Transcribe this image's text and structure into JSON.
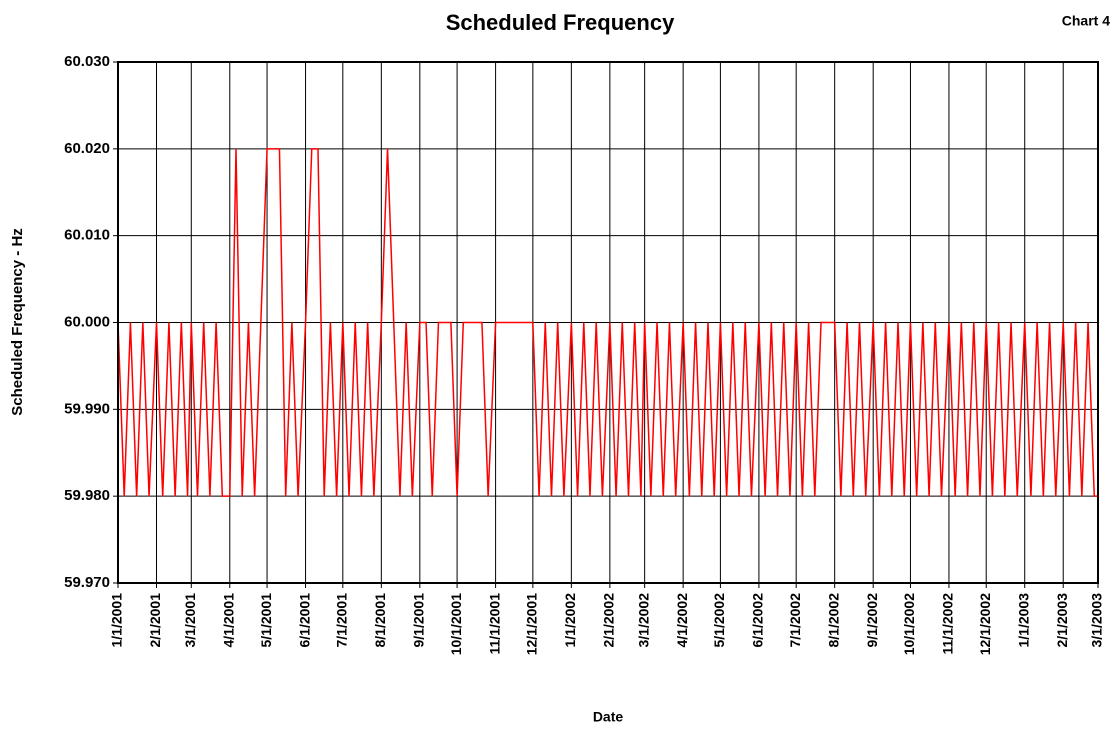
{
  "chart_data": {
    "type": "line",
    "title": "Scheduled Frequency",
    "annotation": "Chart 4",
    "xlabel": "Date",
    "ylabel": "Scheduled Frequency - Hz",
    "ylim": [
      59.97,
      60.03
    ],
    "yticks": [
      {
        "value": 59.97,
        "label": "59.970"
      },
      {
        "value": 59.98,
        "label": "59.980"
      },
      {
        "value": 59.99,
        "label": "59.990"
      },
      {
        "value": 60.0,
        "label": "60.000"
      },
      {
        "value": 60.01,
        "label": "60.010"
      },
      {
        "value": 60.02,
        "label": "60.020"
      },
      {
        "value": 60.03,
        "label": "60.030"
      }
    ],
    "xlim": [
      "1/1/2001",
      "3/1/2003"
    ],
    "xticks": [
      "1/1/2001",
      "2/1/2001",
      "3/1/2001",
      "4/1/2001",
      "5/1/2001",
      "6/1/2001",
      "7/1/2001",
      "8/1/2001",
      "9/1/2001",
      "10/1/2001",
      "11/1/2001",
      "12/1/2001",
      "1/1/2002",
      "2/1/2002",
      "3/1/2002",
      "4/1/2002",
      "5/1/2002",
      "6/1/2002",
      "7/1/2002",
      "8/1/2002",
      "9/1/2002",
      "10/1/2002",
      "11/1/2002",
      "12/1/2002",
      "1/1/2003",
      "2/1/2003",
      "3/1/2003"
    ],
    "grid": true,
    "x": [
      "1/1/2001",
      "1/6/2001",
      "1/11/2001",
      "1/16/2001",
      "1/21/2001",
      "1/26/2001",
      "2/1/2001",
      "2/6/2001",
      "2/11/2001",
      "2/16/2001",
      "2/21/2001",
      "2/26/2001",
      "3/1/2001",
      "3/6/2001",
      "3/11/2001",
      "3/16/2001",
      "3/21/2001",
      "3/26/2001",
      "4/1/2001",
      "4/6/2001",
      "4/11/2001",
      "4/16/2001",
      "4/21/2001",
      "4/26/2001",
      "5/1/2001",
      "5/6/2001",
      "5/11/2001",
      "5/16/2001",
      "5/21/2001",
      "5/26/2001",
      "6/1/2001",
      "6/6/2001",
      "6/11/2001",
      "6/16/2001",
      "6/21/2001",
      "6/26/2001",
      "7/1/2001",
      "7/6/2001",
      "7/11/2001",
      "7/16/2001",
      "7/21/2001",
      "7/26/2001",
      "8/1/2001",
      "8/6/2001",
      "8/11/2001",
      "8/16/2001",
      "8/21/2001",
      "8/26/2001",
      "9/1/2001",
      "9/6/2001",
      "9/11/2001",
      "9/16/2001",
      "9/21/2001",
      "9/26/2001",
      "10/1/2001",
      "10/6/2001",
      "10/11/2001",
      "10/16/2001",
      "10/21/2001",
      "10/26/2001",
      "11/1/2001",
      "11/6/2001",
      "11/11/2001",
      "11/16/2001",
      "11/21/2001",
      "11/26/2001",
      "12/1/2001",
      "12/6/2001",
      "12/11/2001",
      "12/16/2001",
      "12/21/2001",
      "12/26/2001",
      "1/1/2002",
      "1/6/2002",
      "1/11/2002",
      "1/16/2002",
      "1/21/2002",
      "1/26/2002",
      "2/1/2002",
      "2/6/2002",
      "2/11/2002",
      "2/16/2002",
      "2/21/2002",
      "2/26/2002",
      "3/1/2002",
      "3/6/2002",
      "3/11/2002",
      "3/16/2002",
      "3/21/2002",
      "3/26/2002",
      "4/1/2002",
      "4/6/2002",
      "4/11/2002",
      "4/16/2002",
      "4/21/2002",
      "4/26/2002",
      "5/1/2002",
      "5/6/2002",
      "5/11/2002",
      "5/16/2002",
      "5/21/2002",
      "5/26/2002",
      "6/1/2002",
      "6/6/2002",
      "6/11/2002",
      "6/16/2002",
      "6/21/2002",
      "6/26/2002",
      "7/1/2002",
      "7/6/2002",
      "7/11/2002",
      "7/16/2002",
      "7/21/2002",
      "7/26/2002",
      "8/1/2002",
      "8/6/2002",
      "8/11/2002",
      "8/16/2002",
      "8/21/2002",
      "8/26/2002",
      "9/1/2002",
      "9/6/2002",
      "9/11/2002",
      "9/16/2002",
      "9/21/2002",
      "9/26/2002",
      "10/1/2002",
      "10/6/2002",
      "10/11/2002",
      "10/16/2002",
      "10/21/2002",
      "10/26/2002",
      "11/1/2002",
      "11/6/2002",
      "11/11/2002",
      "11/16/2002",
      "11/21/2002",
      "11/26/2002",
      "12/1/2002",
      "12/6/2002",
      "12/11/2002",
      "12/16/2002",
      "12/21/2002",
      "12/26/2002",
      "1/1/2003",
      "1/6/2003",
      "1/11/2003",
      "1/16/2003",
      "1/21/2003",
      "1/26/2003",
      "2/1/2003",
      "2/6/2003",
      "2/11/2003",
      "2/16/2003",
      "2/21/2003",
      "2/26/2003",
      "3/1/2003"
    ],
    "series": [
      {
        "name": "Scheduled Frequency",
        "color": "#ff0000",
        "values": [
          60,
          59.98,
          60,
          59.98,
          60,
          59.98,
          60,
          59.98,
          60,
          59.98,
          60,
          59.98,
          60,
          59.98,
          60,
          59.98,
          60,
          59.98,
          59.98,
          60.02,
          59.98,
          60,
          59.98,
          60,
          60.02,
          60.02,
          60.02,
          59.98,
          60,
          59.98,
          60,
          60.02,
          60.02,
          59.98,
          60,
          59.98,
          60,
          59.98,
          60,
          59.98,
          60,
          59.98,
          60,
          60.02,
          60,
          59.98,
          60,
          59.98,
          60,
          60,
          59.98,
          60,
          60,
          60,
          59.98,
          60,
          60,
          60,
          60,
          59.98,
          60,
          60,
          60,
          60,
          60,
          60,
          60,
          59.98,
          60,
          59.98,
          60,
          59.98,
          60,
          59.98,
          60,
          59.98,
          60,
          59.98,
          60,
          59.98,
          60,
          59.98,
          60,
          59.98,
          60,
          59.98,
          60,
          59.98,
          60,
          59.98,
          60,
          59.98,
          60,
          59.98,
          60,
          59.98,
          60,
          59.98,
          60,
          59.98,
          60,
          59.98,
          60,
          59.98,
          60,
          59.98,
          60,
          59.98,
          60,
          59.98,
          60,
          59.98,
          60,
          60,
          60,
          59.98,
          60,
          59.98,
          60,
          59.98,
          60,
          59.98,
          60,
          59.98,
          60,
          59.98,
          60,
          59.98,
          60,
          59.98,
          60,
          59.98,
          60,
          59.98,
          60,
          59.98,
          60,
          59.98,
          60,
          59.98,
          60,
          59.98,
          60,
          59.98,
          60,
          59.98,
          60,
          59.98,
          60,
          59.98,
          60,
          59.98,
          60,
          59.98,
          60,
          59.98,
          59.98
        ]
      }
    ]
  }
}
